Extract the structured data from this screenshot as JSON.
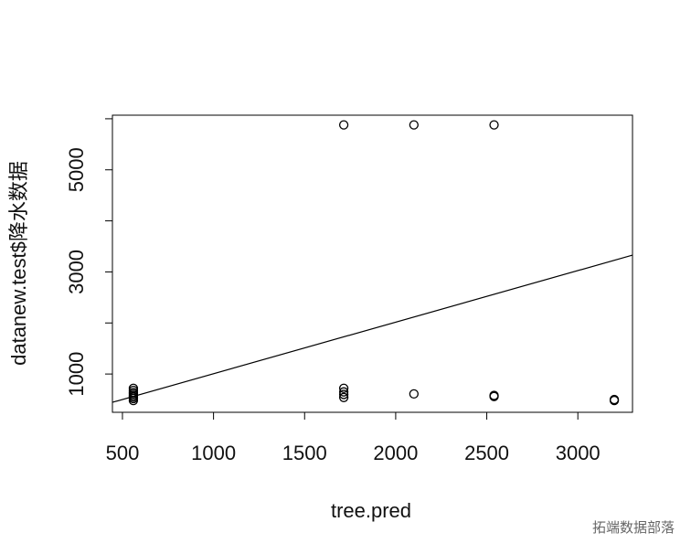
{
  "chart_data": {
    "type": "scatter",
    "x_label": "tree.pred",
    "y_label": "datanew.test$降水数据",
    "watermark": "拓端数据部落",
    "x": [
      560,
      560,
      560,
      560,
      560,
      560,
      560,
      560,
      1715,
      1715,
      1715,
      1715,
      1715,
      2100,
      2100,
      2540,
      2540,
      2540,
      3200,
      3200
    ],
    "values": [
      480,
      520,
      550,
      580,
      610,
      640,
      680,
      720,
      5880,
      720,
      650,
      600,
      540,
      5880,
      610,
      5880,
      580,
      560,
      500,
      480
    ],
    "color": "#000000",
    "fit_line": {
      "intercept": -4,
      "slope": 1.01
    },
    "xlim": [
      445,
      3300
    ],
    "ylim": [
      250,
      6070
    ],
    "xticks": [
      500,
      1000,
      1500,
      2000,
      2500,
      3000
    ],
    "yticks": [
      1000,
      3000,
      5000
    ],
    "yminor_ticks": [
      2000,
      4000,
      6000
    ]
  }
}
